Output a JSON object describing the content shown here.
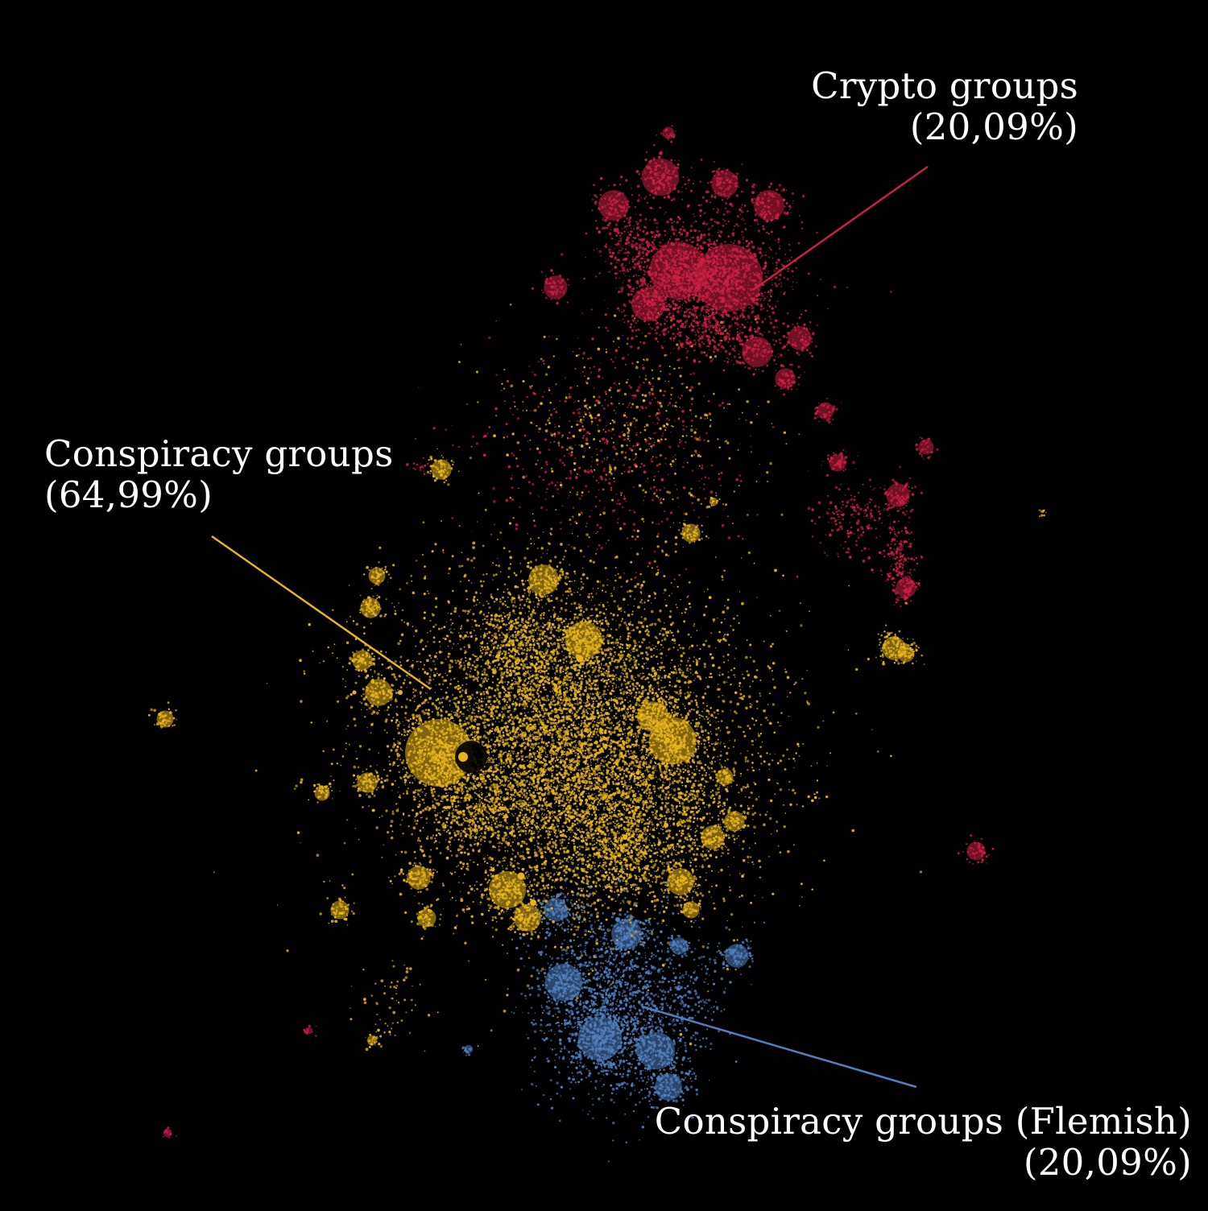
{
  "clusters": [
    {
      "id": "crypto",
      "name": "Crypto groups",
      "share": "(20,09%)",
      "color": "#cc1f44"
    },
    {
      "id": "conspiracy",
      "name": "Conspiracy groups",
      "share": "(64,99%)",
      "color": "#e8b51a"
    },
    {
      "id": "flemish",
      "name": "Conspiracy groups (Flemish)",
      "share": "(20,09%)",
      "color": "#4f7fc0"
    }
  ]
}
